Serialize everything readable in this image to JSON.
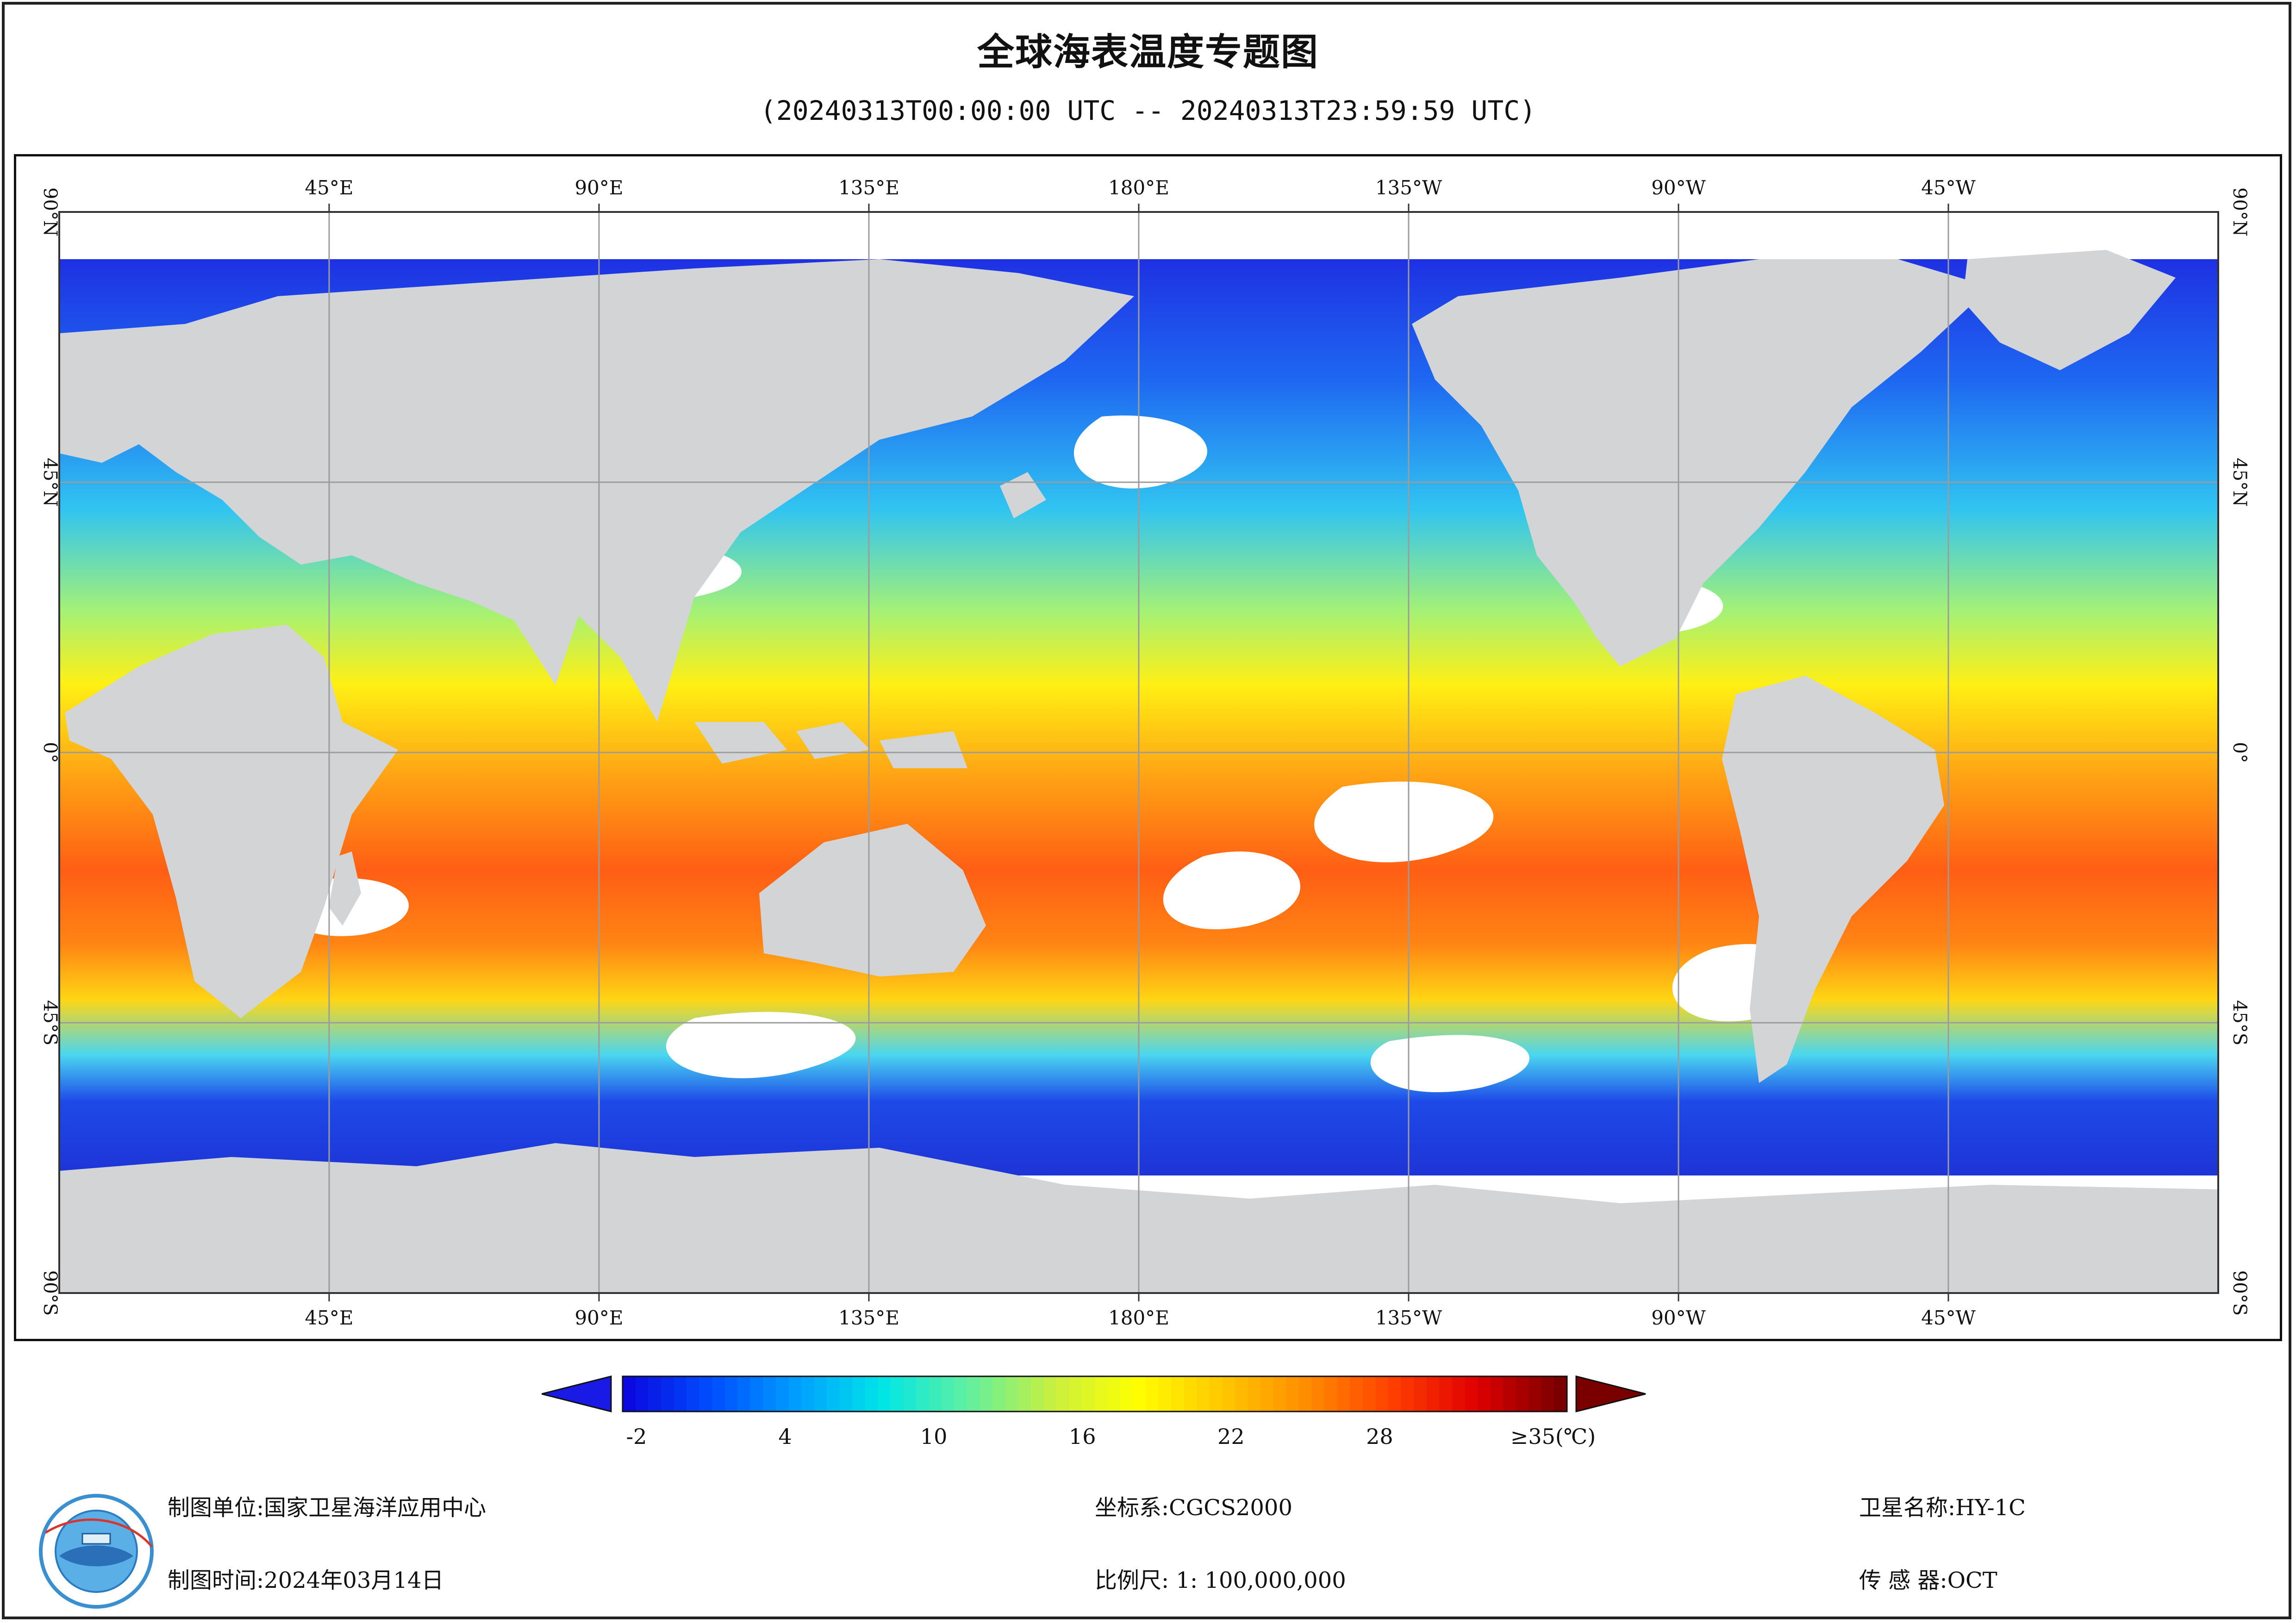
{
  "title": "全球海表温度专题图",
  "subtitle": "(20240313T00:00:00 UTC -- 20240313T23:59:59 UTC)",
  "map": {
    "top_lon_labels": [
      "45°E",
      "90°E",
      "135°E",
      "180°E",
      "135°W",
      "90°W",
      "45°W"
    ],
    "bottom_lon_labels": [
      "45°E",
      "90°E",
      "135°E",
      "180°E",
      "135°W",
      "90°W",
      "45°W"
    ],
    "lat_labels": [
      "90°N",
      "45°N",
      "0°",
      "45°S",
      "90°S"
    ],
    "land_color": "#d3d4d6",
    "no_data_color": "#ffffff",
    "grid_color": "#9c9c9c"
  },
  "colorbar": {
    "unit": "(℃)",
    "min": -2,
    "max": 35,
    "tick_labels": [
      "-2",
      "4",
      "10",
      "16",
      "22",
      "28",
      "≥35(℃)"
    ],
    "tick_values": [
      -2,
      4,
      10,
      16,
      22,
      28,
      35
    ],
    "colors": [
      "#0a0ae0",
      "#0050ff",
      "#00a0ff",
      "#00e6e6",
      "#60f0a0",
      "#c8f040",
      "#ffff00",
      "#ffc800",
      "#ff8c00",
      "#ff4000",
      "#e00000",
      "#7a0000"
    ],
    "under_color": "#1a1ae6",
    "over_color": "#7a0000"
  },
  "footer": {
    "unit_label": "制图单位:国家卫星海洋应用中心",
    "time_label": "制图时间:2024年03月14日",
    "crs_label": "坐标系:CGCS2000",
    "scale_label": "比例尺: 1: 100,000,000",
    "satellite_label": "卫星名称:HY-1C",
    "sensor_label": "传 感 器:OCT"
  },
  "logo": {
    "name": "nsoas-logo-icon"
  }
}
